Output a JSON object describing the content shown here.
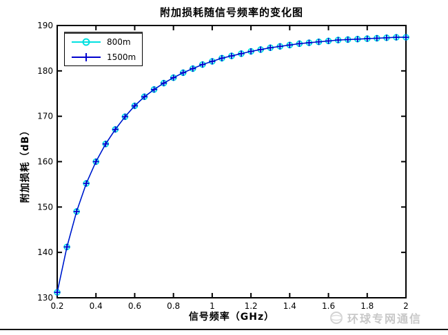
{
  "title": "附加损耗随信号频率的变化图",
  "axes": {
    "xlabel": "信号频率（GHz）",
    "ylabel": "附加损耗（dB）",
    "xticks": {
      "values": [
        0.2,
        0.4,
        0.6,
        0.8,
        1,
        1.2,
        1.4,
        1.6,
        1.8,
        2
      ],
      "labels": [
        "0.2",
        "0.4",
        "0.6",
        "0.8",
        "1",
        "1.2",
        "1.4",
        "1.6",
        "1.8",
        "2"
      ]
    },
    "yticks": {
      "values": [
        130,
        140,
        150,
        160,
        170,
        180,
        190
      ],
      "labels": [
        "130",
        "140",
        "150",
        "160",
        "170",
        "180",
        "190"
      ]
    }
  },
  "legend": {
    "position": "upper-left",
    "items": [
      {
        "label": "800m",
        "color": "#00e0e0",
        "marker": "circle"
      },
      {
        "label": "1500m",
        "color": "#0000cd",
        "marker": "plus"
      }
    ]
  },
  "watermark": {
    "logo": "globe-icon",
    "text": "环球专网通信",
    "color": "#c8c8c8"
  },
  "colors": {
    "axis": "#000000",
    "background": "#ffffff",
    "divider": "#141414",
    "series_800m": "#00e0e0",
    "series_1500m": "#0000cd"
  },
  "chart_data": {
    "type": "line",
    "title": "附加损耗随信号频率的变化图",
    "xlabel": "信号频率（GHz）",
    "ylabel": "附加损耗（dB）",
    "xlim": [
      0.2,
      2
    ],
    "ylim": [
      130,
      190
    ],
    "grid": false,
    "legend_position": "upper-left",
    "x": [
      0.2,
      0.25,
      0.3,
      0.35,
      0.4,
      0.45,
      0.5,
      0.55,
      0.6,
      0.65,
      0.7,
      0.75,
      0.8,
      0.85,
      0.9,
      0.95,
      1,
      1.05,
      1.1,
      1.15,
      1.2,
      1.25,
      1.3,
      1.35,
      1.4,
      1.45,
      1.5,
      1.55,
      1.6,
      1.65,
      1.7,
      1.75,
      1.8,
      1.85,
      1.9,
      1.95,
      2
    ],
    "series": [
      {
        "name": "800m",
        "color": "#00e0e0",
        "marker": "circle",
        "values": [
          131.2,
          141.2,
          149,
          155.2,
          160,
          163.9,
          167.1,
          169.9,
          172.3,
          174.3,
          175.9,
          177.3,
          178.5,
          179.6,
          180.5,
          181.4,
          182.1,
          182.8,
          183.3,
          183.8,
          184.3,
          184.7,
          185.1,
          185.4,
          185.7,
          186,
          186.2,
          186.4,
          186.6,
          186.8,
          186.9,
          187,
          187.1,
          187.2,
          187.3,
          187.4,
          187.4
        ]
      },
      {
        "name": "1500m",
        "color": "#0000cd",
        "marker": "plus",
        "values": [
          131.2,
          141.2,
          149,
          155.2,
          160,
          163.9,
          167.1,
          169.9,
          172.3,
          174.3,
          175.9,
          177.3,
          178.5,
          179.6,
          180.5,
          181.4,
          182.1,
          182.8,
          183.3,
          183.8,
          184.3,
          184.7,
          185.1,
          185.4,
          185.7,
          186,
          186.2,
          186.4,
          186.6,
          186.8,
          186.9,
          187,
          187.1,
          187.2,
          187.3,
          187.4,
          187.4
        ]
      }
    ]
  }
}
